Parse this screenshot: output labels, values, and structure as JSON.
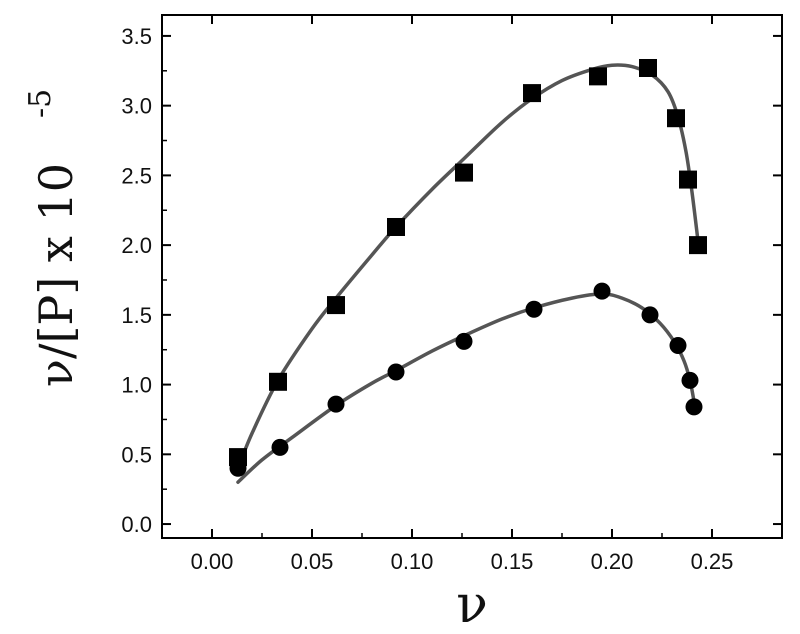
{
  "chart_data": {
    "type": "scatter",
    "xlabel": "ν",
    "ylabel": "ν/[P] x 10",
    "ylabel_exponent": "-5",
    "xlim": [
      -0.025,
      0.285
    ],
    "ylim": [
      -0.1,
      3.65
    ],
    "x_ticks": [
      0.0,
      0.05,
      0.1,
      0.15,
      0.2,
      0.25
    ],
    "x_tick_labels": [
      "0.00",
      "0.05",
      "0.10",
      "0.15",
      "0.20",
      "0.25"
    ],
    "y_ticks": [
      0.0,
      0.5,
      1.0,
      1.5,
      2.0,
      2.5,
      3.0,
      3.5
    ],
    "y_tick_labels": [
      "0.0",
      "0.5",
      "1.0",
      "1.5",
      "2.0",
      "2.5",
      "3.0",
      "3.5"
    ],
    "grid": false,
    "series": [
      {
        "marker": "square",
        "color": "#000000",
        "points": [
          [
            0.013,
            0.48
          ],
          [
            0.033,
            1.02
          ],
          [
            0.062,
            1.57
          ],
          [
            0.092,
            2.13
          ],
          [
            0.126,
            2.52
          ],
          [
            0.16,
            3.09
          ],
          [
            0.193,
            3.21
          ],
          [
            0.218,
            3.27
          ],
          [
            0.232,
            2.91
          ],
          [
            0.238,
            2.47
          ],
          [
            0.243,
            2.0
          ]
        ],
        "fit_curve": [
          [
            0.013,
            0.4
          ],
          [
            0.02,
            0.65
          ],
          [
            0.033,
            1.03
          ],
          [
            0.05,
            1.4
          ],
          [
            0.062,
            1.62
          ],
          [
            0.08,
            1.93
          ],
          [
            0.092,
            2.13
          ],
          [
            0.11,
            2.4
          ],
          [
            0.126,
            2.62
          ],
          [
            0.145,
            2.88
          ],
          [
            0.16,
            3.05
          ],
          [
            0.175,
            3.18
          ],
          [
            0.19,
            3.26
          ],
          [
            0.2,
            3.29
          ],
          [
            0.21,
            3.28
          ],
          [
            0.22,
            3.22
          ],
          [
            0.228,
            3.1
          ],
          [
            0.233,
            2.92
          ],
          [
            0.237,
            2.67
          ],
          [
            0.24,
            2.38
          ],
          [
            0.243,
            2.03
          ]
        ]
      },
      {
        "marker": "circle",
        "color": "#000000",
        "points": [
          [
            0.013,
            0.4
          ],
          [
            0.034,
            0.55
          ],
          [
            0.062,
            0.86
          ],
          [
            0.092,
            1.09
          ],
          [
            0.126,
            1.31
          ],
          [
            0.161,
            1.54
          ],
          [
            0.195,
            1.67
          ],
          [
            0.219,
            1.5
          ],
          [
            0.233,
            1.28
          ],
          [
            0.239,
            1.03
          ],
          [
            0.241,
            0.84
          ]
        ],
        "fit_curve": [
          [
            0.013,
            0.3
          ],
          [
            0.025,
            0.46
          ],
          [
            0.04,
            0.62
          ],
          [
            0.062,
            0.85
          ],
          [
            0.08,
            1.01
          ],
          [
            0.092,
            1.1
          ],
          [
            0.11,
            1.24
          ],
          [
            0.126,
            1.35
          ],
          [
            0.145,
            1.47
          ],
          [
            0.161,
            1.55
          ],
          [
            0.18,
            1.62
          ],
          [
            0.195,
            1.65
          ],
          [
            0.205,
            1.62
          ],
          [
            0.215,
            1.55
          ],
          [
            0.224,
            1.44
          ],
          [
            0.231,
            1.31
          ],
          [
            0.236,
            1.17
          ],
          [
            0.239,
            1.03
          ],
          [
            0.241,
            0.88
          ]
        ]
      }
    ],
    "curve_color": "#555555"
  }
}
